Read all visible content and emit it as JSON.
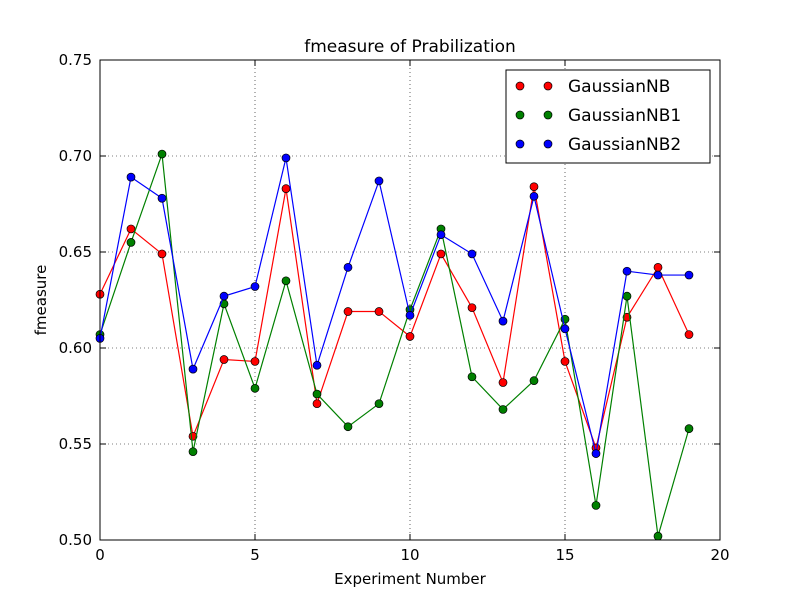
{
  "chart_data": {
    "type": "line",
    "title": "fmeasure of Prabilization",
    "xlabel": "Experiment Number",
    "ylabel": "fmeasure",
    "xlim": [
      0,
      20
    ],
    "ylim": [
      0.5,
      0.75
    ],
    "xticks": [
      "0",
      "5",
      "10",
      "15",
      "20"
    ],
    "yticks": [
      "0.50",
      "0.55",
      "0.60",
      "0.65",
      "0.70",
      "0.75"
    ],
    "grid": true,
    "legend_position": "top-right",
    "x": [
      0,
      1,
      2,
      3,
      4,
      5,
      6,
      7,
      8,
      9,
      10,
      11,
      12,
      13,
      14,
      15,
      16,
      17,
      18,
      19
    ],
    "series": [
      {
        "name": "GaussianNB",
        "color": "#ff0000",
        "values": [
          0.628,
          0.662,
          0.649,
          0.554,
          0.594,
          0.593,
          0.683,
          0.571,
          0.619,
          0.619,
          0.606,
          0.649,
          0.621,
          0.582,
          0.684,
          0.593,
          0.548,
          0.616,
          0.642,
          0.607
        ]
      },
      {
        "name": "GaussianNB1",
        "color": "#008000",
        "values": [
          0.607,
          0.655,
          0.701,
          0.546,
          0.623,
          0.579,
          0.635,
          0.576,
          0.559,
          0.571,
          0.62,
          0.662,
          0.585,
          0.568,
          0.583,
          0.615,
          0.518,
          0.627,
          0.502,
          0.558
        ]
      },
      {
        "name": "GaussianNB2",
        "color": "#0000ff",
        "values": [
          0.605,
          0.689,
          0.678,
          0.589,
          0.627,
          0.632,
          0.699,
          0.591,
          0.642,
          0.687,
          0.617,
          0.659,
          0.649,
          0.614,
          0.679,
          0.61,
          0.545,
          0.64,
          0.638,
          0.638
        ]
      }
    ]
  }
}
